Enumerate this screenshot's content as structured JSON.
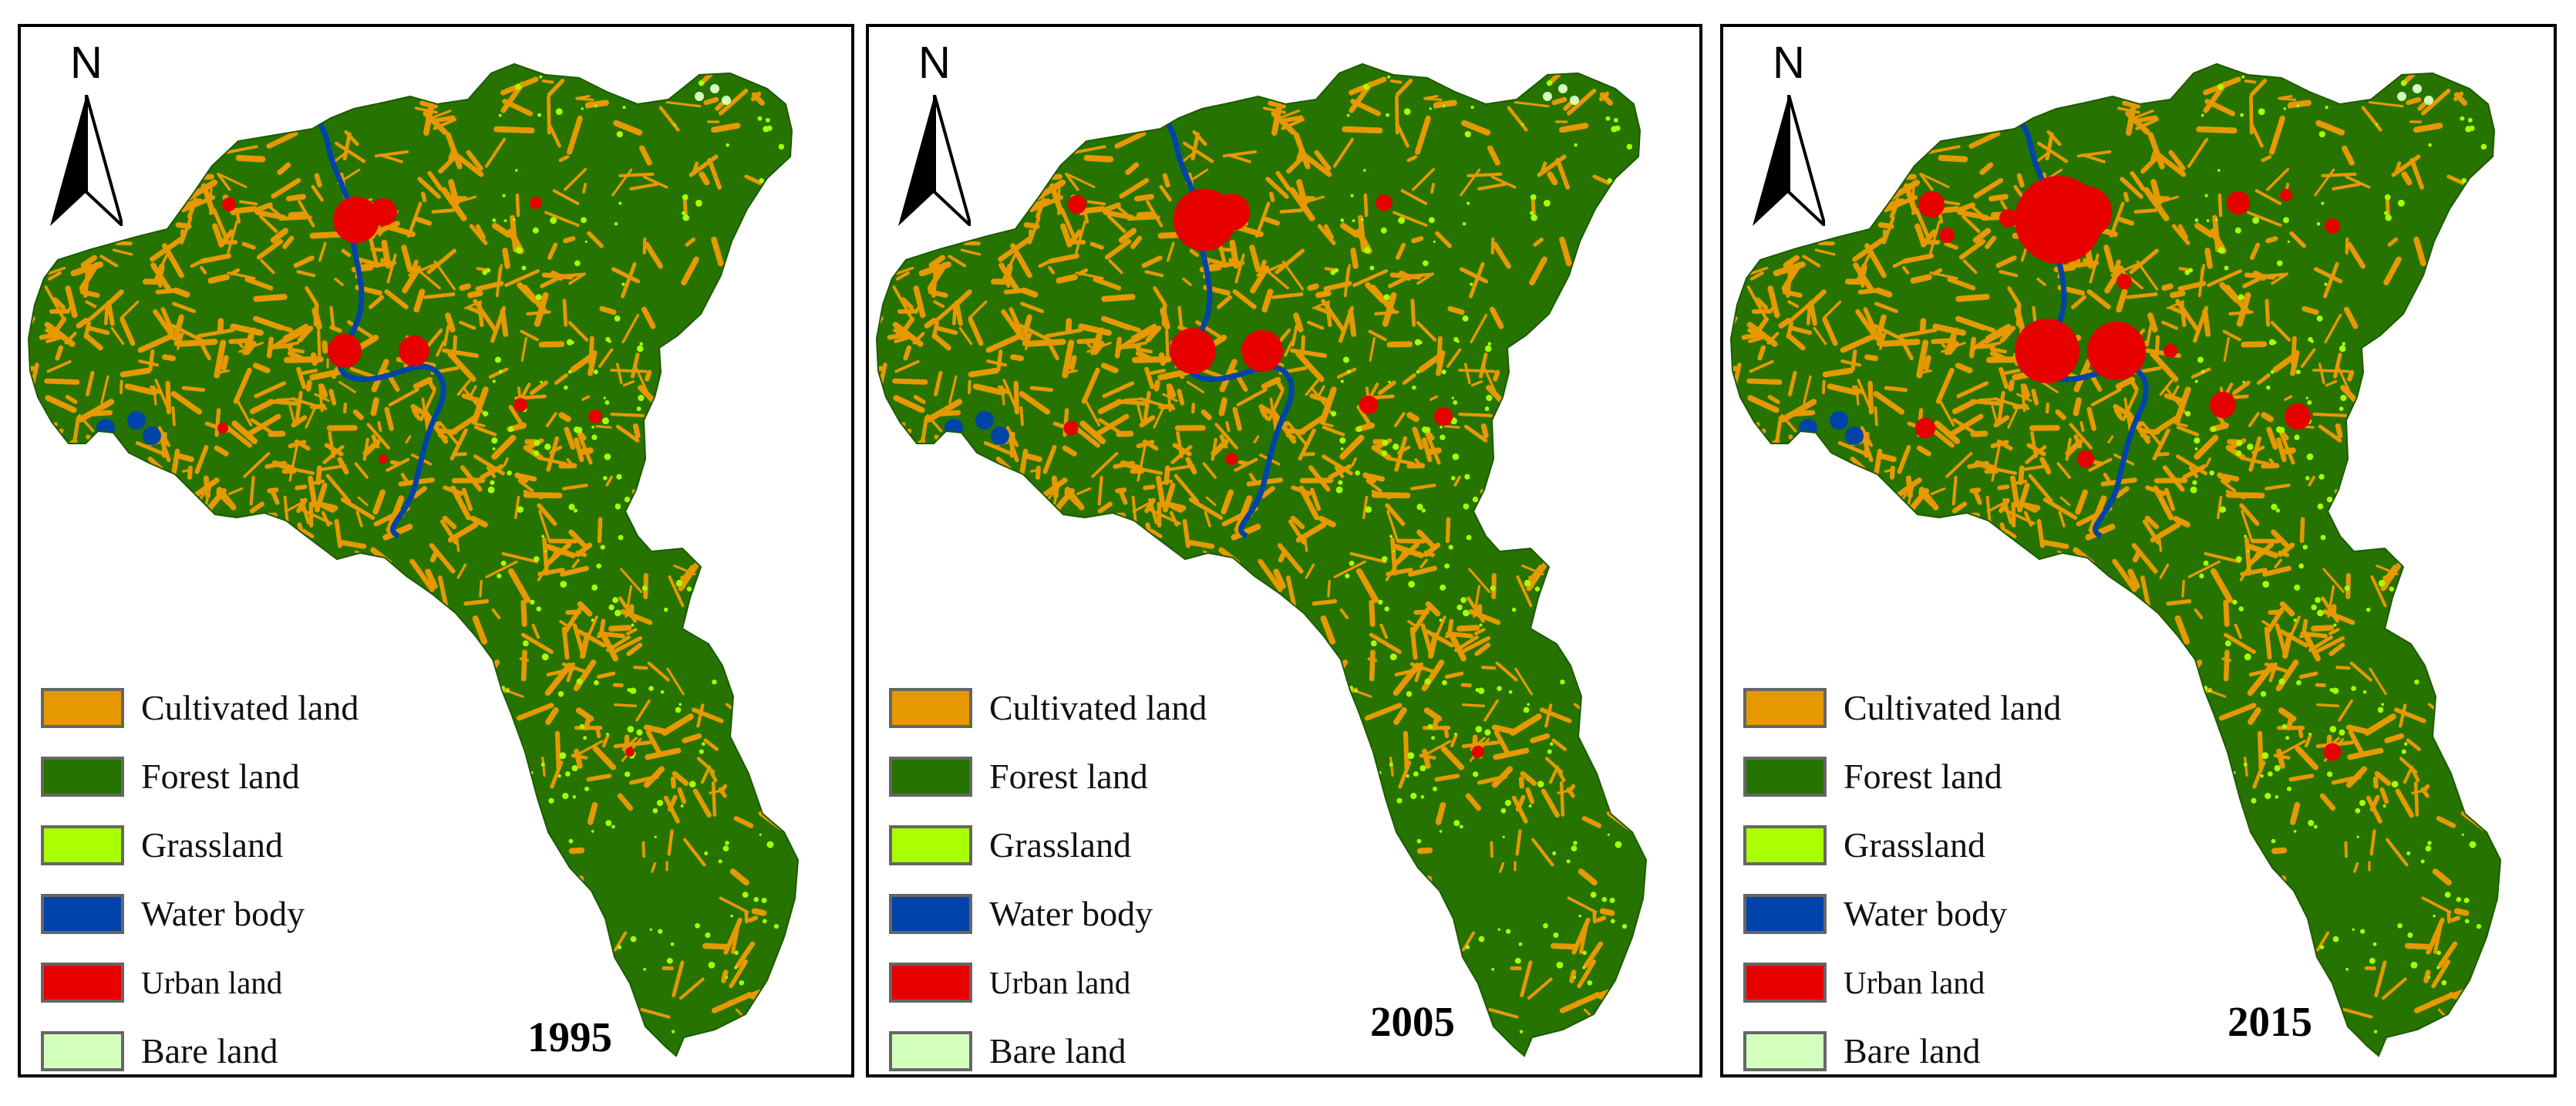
{
  "colors": {
    "cultivated": "#e69900",
    "forest": "#267300",
    "grassland": "#aaff00",
    "water": "#0044aa",
    "urban": "#e60000",
    "bare": "#d3ffbe",
    "swatch_border": "#666666"
  },
  "north_arrow": {
    "label": "N"
  },
  "legend": [
    {
      "key": "cultivated",
      "label": "Cultivated land",
      "color": "#e69900"
    },
    {
      "key": "forest",
      "label": "Forest land",
      "color": "#267300"
    },
    {
      "key": "grassland",
      "label": "Grassland",
      "color": "#aaff00"
    },
    {
      "key": "water",
      "label": "Water body",
      "color": "#0044aa"
    },
    {
      "key": "urban",
      "label": "Urban land",
      "color": "#e60000"
    },
    {
      "key": "bare",
      "label": "Bare land",
      "color": "#d3ffbe"
    }
  ],
  "panels": [
    {
      "year": "1995",
      "urban_extent": "small"
    },
    {
      "year": "2005",
      "urban_extent": "medium"
    },
    {
      "year": "2015",
      "urban_extent": "large"
    }
  ]
}
